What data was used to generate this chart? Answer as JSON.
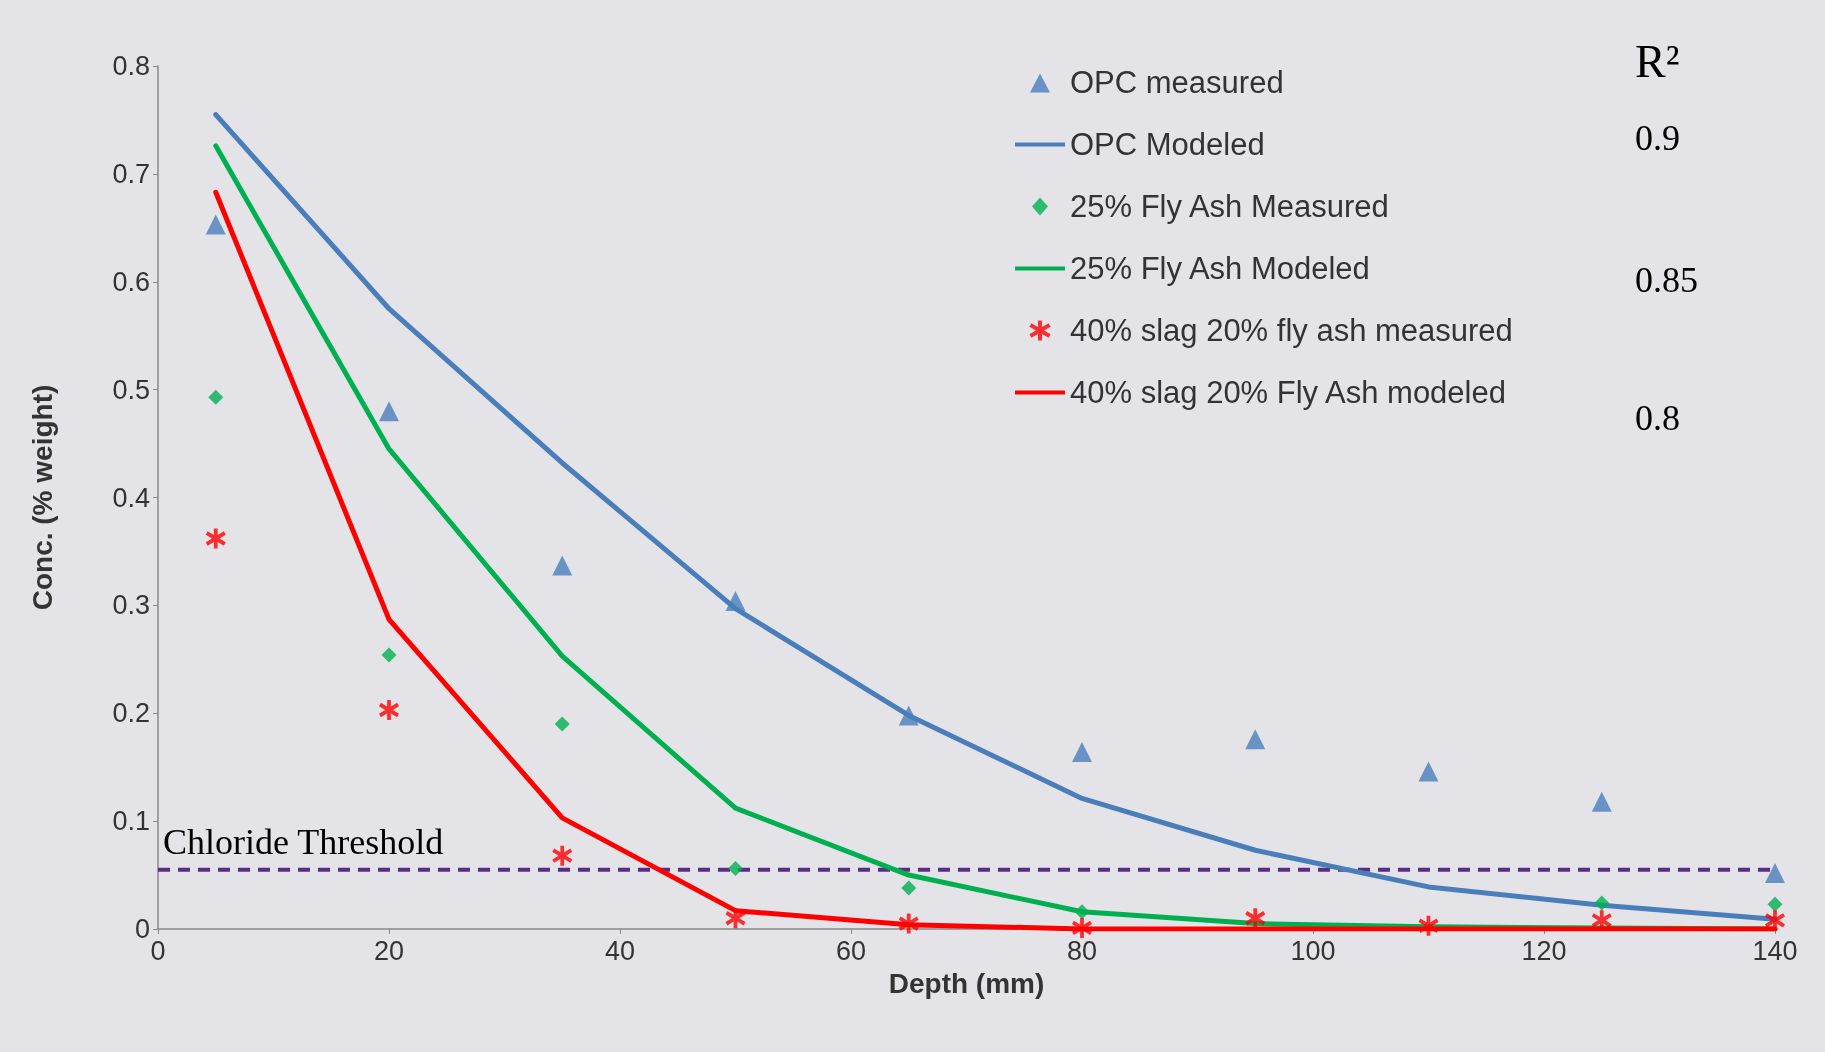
{
  "chart_data": {
    "type": "scatter",
    "xlabel": "Depth (mm)",
    "ylabel": "Conc. (% weight)",
    "x": [
      5,
      20,
      35,
      50,
      65,
      80,
      95,
      110,
      125,
      140
    ],
    "series": [
      {
        "name": "OPC measured",
        "marker": "triangle",
        "color": "#4a7ebb",
        "values": [
          0.653,
          0.48,
          0.337,
          0.304,
          0.198,
          0.164,
          0.176,
          0.146,
          0.118,
          0.052
        ]
      },
      {
        "name": "OPC Modeled",
        "type": "line",
        "marker": "none",
        "color": "#4a7ebb",
        "values": [
          0.755,
          0.575,
          0.432,
          0.297,
          0.198,
          0.121,
          0.073,
          0.039,
          0.022,
          0.009
        ]
      },
      {
        "name": "25% Fly Ash Measured",
        "marker": "diamond",
        "color": "#00b050",
        "values": [
          0.493,
          0.254,
          0.19,
          0.056,
          0.038,
          0.016,
          null,
          null,
          0.024,
          0.023
        ]
      },
      {
        "name": "25% Fly Ash Modeled",
        "type": "line",
        "marker": "none",
        "color": "#00b050",
        "values": [
          0.726,
          0.445,
          0.253,
          0.112,
          0.05,
          0.016,
          0.005,
          0.002,
          0.001,
          0
        ]
      },
      {
        "name": "40% slag 20% fly ash measured",
        "marker": "cross",
        "color": "#ff0000",
        "values": [
          0.362,
          0.203,
          0.068,
          0.01,
          0.005,
          0.001,
          0.01,
          0.003,
          0.008,
          0.008
        ]
      },
      {
        "name": "40% slag 20% Fly Ash modeled",
        "type": "line",
        "marker": "none",
        "color": "#ff0000",
        "values": [
          0.683,
          0.287,
          0.103,
          0.017,
          0.004,
          0,
          0,
          0,
          0,
          0
        ]
      }
    ],
    "xlim": [
      0,
      140
    ],
    "xticks": [
      0,
      20,
      40,
      60,
      80,
      100,
      120,
      140
    ],
    "ylim": [
      0,
      0.8
    ],
    "yticks": [
      0,
      0.1,
      0.2,
      0.3,
      0.4,
      0.5,
      0.6,
      0.7,
      0.8
    ],
    "ref_lines": [
      {
        "axis": "y",
        "value": 0.055,
        "label": "Chloride Threshold",
        "color": "#5b2c83",
        "line_style": "dashed"
      }
    ],
    "annotations": [
      "R²",
      "0.9",
      "0.85",
      "0.8"
    ],
    "legend": "top right",
    "grid": false
  }
}
